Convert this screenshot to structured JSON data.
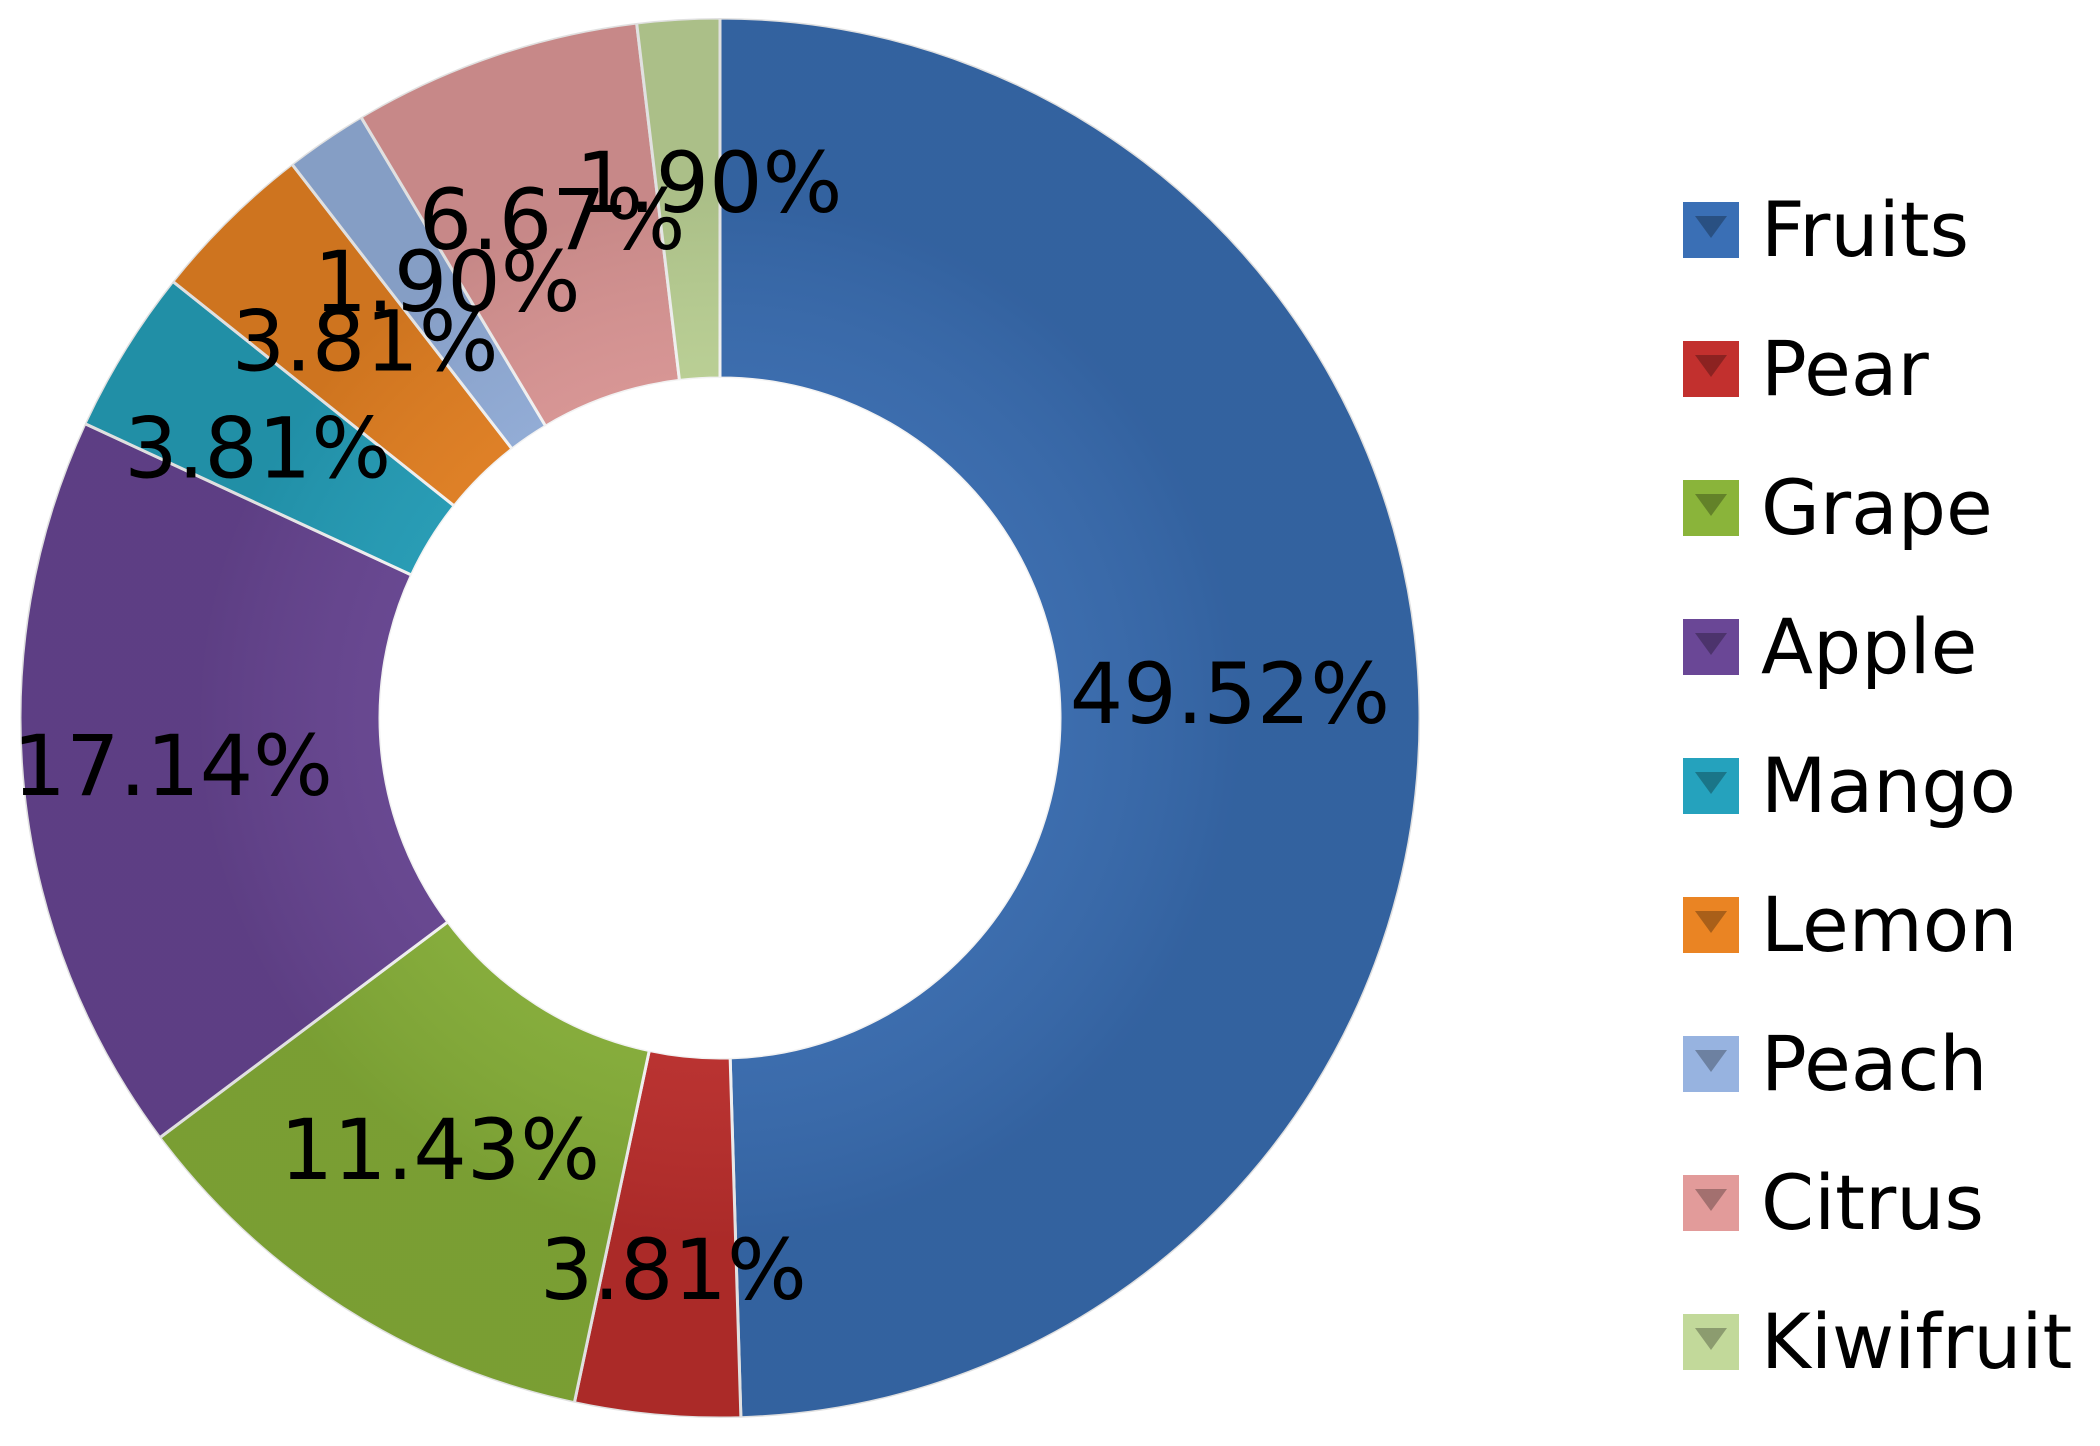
{
  "chart_data": {
    "type": "pie",
    "subtype": "doughnut",
    "categories": [
      "Fruits",
      "Pear",
      "Grape",
      "Apple",
      "Mango",
      "Lemon",
      "Peach",
      "Citrus",
      "Kiwifruit"
    ],
    "values": [
      49.52,
      3.81,
      11.43,
      17.14,
      3.81,
      3.81,
      1.9,
      6.67,
      1.9
    ],
    "data_labels": [
      "49.52%",
      "3.81%",
      "11.43%",
      "17.14%",
      "3.81%",
      "3.81%",
      "1.90%",
      "6.67%",
      "1.90%"
    ],
    "colors": [
      "#3A6FB5",
      "#C2302E",
      "#8AB43A",
      "#6A4796",
      "#25A2BD",
      "#EA8423",
      "#97B3E0",
      "#E29B9A",
      "#C2D99A"
    ],
    "legend_position": "right",
    "title": ""
  }
}
